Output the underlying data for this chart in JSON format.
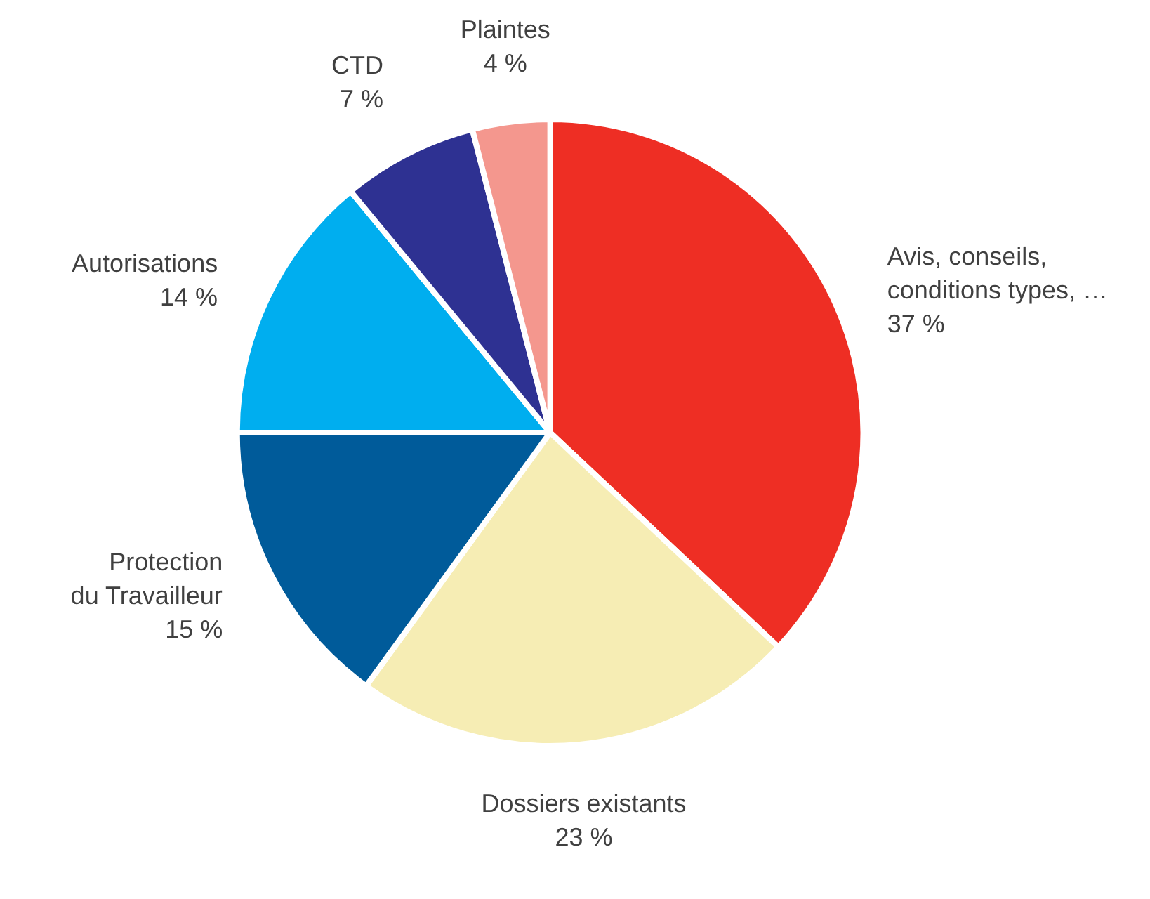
{
  "chart_data": {
    "type": "pie",
    "categories": [
      "Avis, conseils,\nconditions types, …",
      "Dossiers existants",
      "Protection\ndu Travailleur",
      "Autorisations",
      "CTD",
      "Plaintes"
    ],
    "values": [
      37,
      23,
      15,
      14,
      7,
      4
    ],
    "value_labels": [
      "37 %",
      "23 %",
      "15 %",
      "14 %",
      "7 %",
      "4 %"
    ],
    "colors": [
      "#ee2e24",
      "#f6edb4",
      "#005b9a",
      "#00aeef",
      "#2e3192",
      "#f4978e"
    ]
  }
}
